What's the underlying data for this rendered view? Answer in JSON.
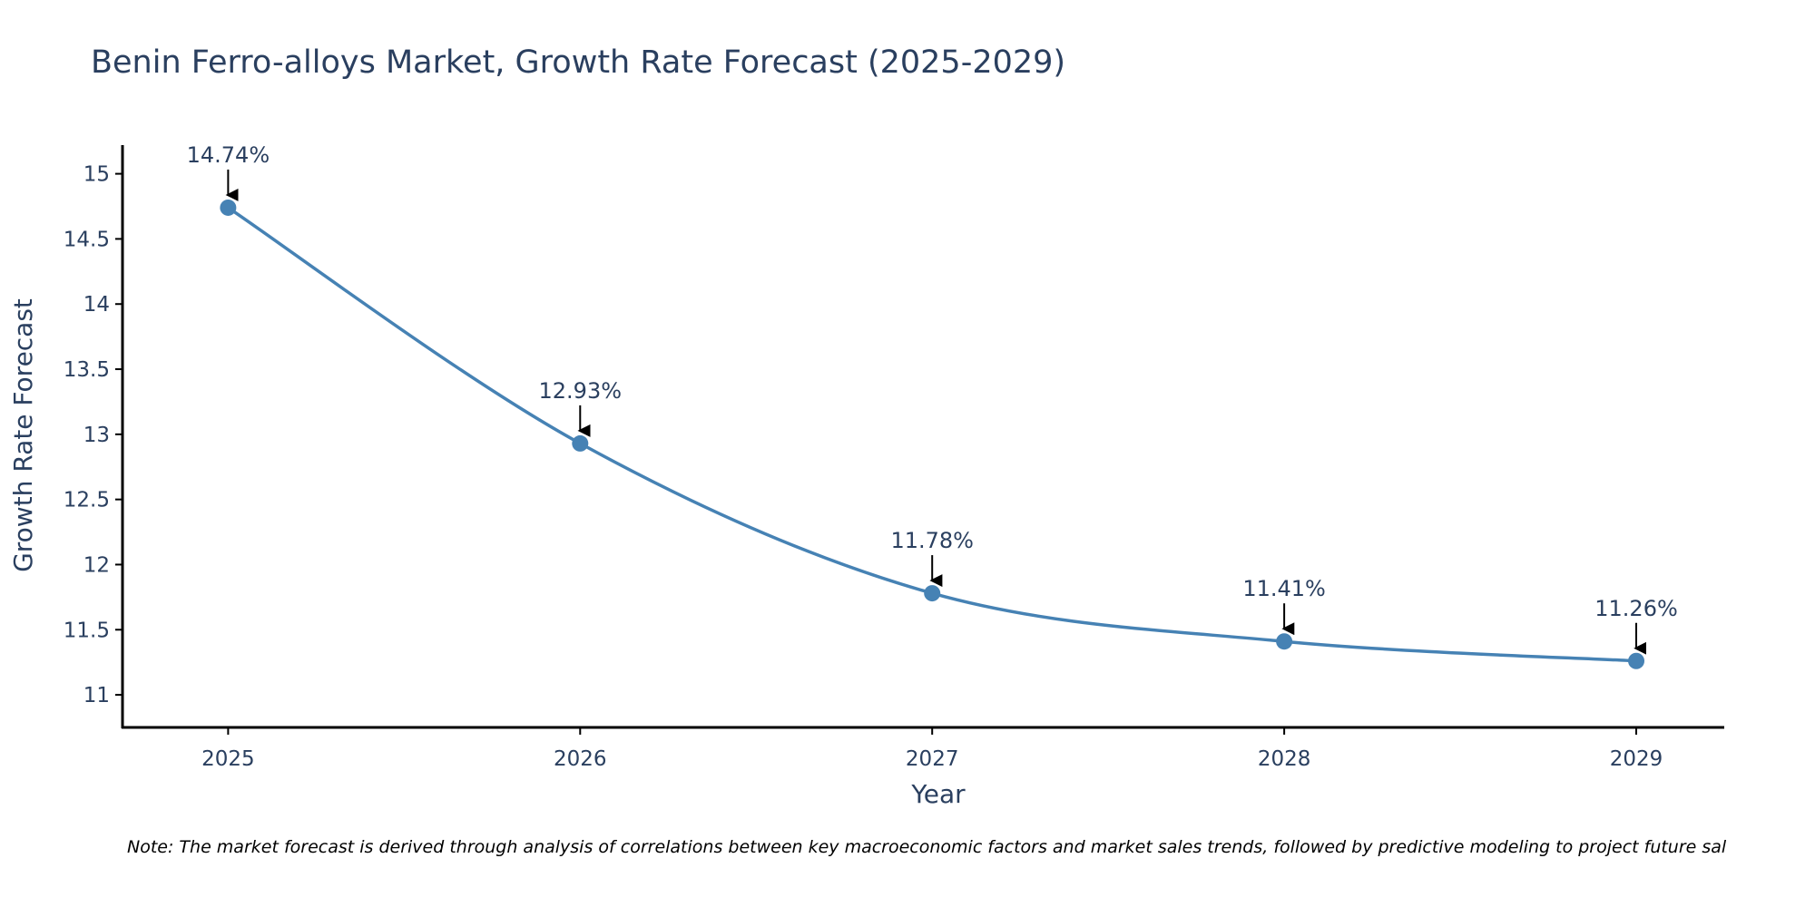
{
  "chart_data": {
    "type": "line",
    "title": "Benin Ferro-alloys Market, Growth Rate Forecast (2025-2029)",
    "xlabel": "Year",
    "ylabel": "Growth Rate Forecast",
    "categories": [
      "2025",
      "2026",
      "2027",
      "2028",
      "2029"
    ],
    "x": [
      2025,
      2026,
      2027,
      2028,
      2029
    ],
    "series": [
      {
        "name": "Growth Rate Forecast",
        "values": [
          14.74,
          12.93,
          11.78,
          11.41,
          11.26
        ],
        "labels": [
          "14.74%",
          "12.93%",
          "11.78%",
          "11.41%",
          "11.26%"
        ],
        "color": "#4682b4"
      }
    ],
    "yticks": [
      11,
      11.5,
      12,
      12.5,
      13,
      13.5,
      14,
      14.5,
      15
    ],
    "ytick_labels": [
      "11",
      "11.5",
      "12",
      "12.5",
      "13",
      "13.5",
      "14",
      "14.5",
      "15"
    ],
    "ylim": [
      10.75,
      15.22
    ],
    "xlim": [
      2024.7,
      2029.25
    ],
    "grid": false,
    "line_shape": "spline"
  },
  "note": "Note: The market forecast is derived through analysis of correlations between key macroeconomic factors and market sales trends, followed by predictive modeling to project future sal",
  "colors": {
    "line": "#4682b4",
    "marker": "#4682b4",
    "text": "#2a3f5f",
    "axis": "#000000",
    "arrow": "#000000"
  }
}
